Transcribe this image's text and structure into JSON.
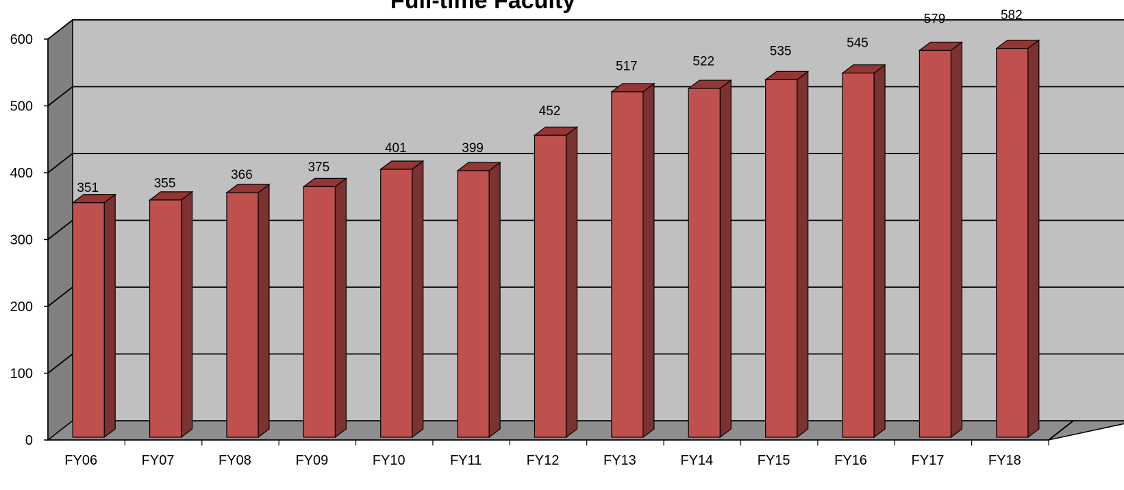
{
  "chart_data": {
    "type": "bar",
    "title": "Full-time Faculty",
    "categories": [
      "FY06",
      "FY07",
      "FY08",
      "FY09",
      "FY10",
      "FY11",
      "FY12",
      "FY13",
      "FY14",
      "FY15",
      "FY16",
      "FY17",
      "FY18"
    ],
    "series": [
      {
        "values": [
          351,
          355,
          366,
          375,
          401,
          399,
          452,
          517,
          522,
          535,
          545,
          579,
          582
        ]
      }
    ],
    "yticks": [
      0,
      100,
      200,
      300,
      400,
      500,
      600
    ],
    "ylim": [
      0,
      600
    ],
    "grid": true,
    "legend": "none",
    "data_labels": true,
    "style": "3d-column",
    "colors": {
      "bar_front": "#c0504d",
      "bar_side": "#7b3230",
      "bar_top": "#943634",
      "back_wall": "#c0c0c0",
      "side_wall": "#808080",
      "floor": "#8e8e8e"
    }
  }
}
